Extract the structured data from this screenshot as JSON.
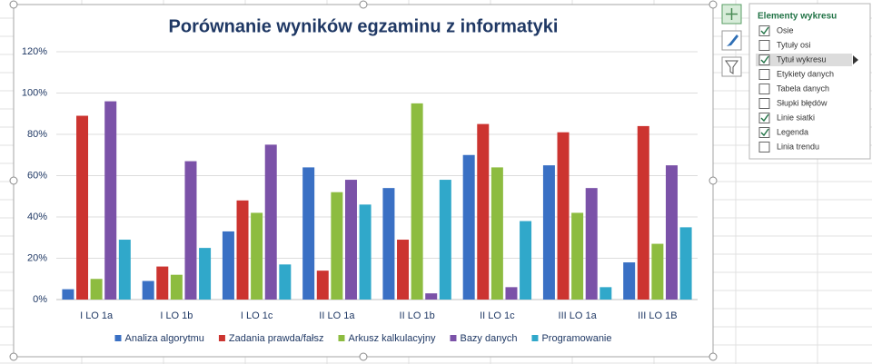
{
  "chart_data": {
    "type": "bar",
    "title": "Porównanie wyników egzaminu z informatyki",
    "categories": [
      "I LO 1a",
      "I LO 1b",
      "I LO 1c",
      "II LO 1a",
      "II LO 1b",
      "II LO 1c",
      "III LO 1a",
      "III LO 1B"
    ],
    "series": [
      {
        "name": "Analiza algorytmu",
        "color": "#3a70c4",
        "values": [
          5,
          9,
          33,
          64,
          54,
          70,
          65,
          18
        ]
      },
      {
        "name": "Zadania prawda/fałsz",
        "color": "#cc3430",
        "values": [
          89,
          16,
          48,
          14,
          29,
          85,
          81,
          84
        ]
      },
      {
        "name": "Arkusz kalkulacyjny",
        "color": "#8dbc40",
        "values": [
          10,
          12,
          42,
          52,
          95,
          64,
          42,
          27
        ]
      },
      {
        "name": "Bazy danych",
        "color": "#7b52a8",
        "values": [
          96,
          67,
          75,
          58,
          3,
          6,
          54,
          65
        ]
      },
      {
        "name": "Programowanie",
        "color": "#30a8ca",
        "values": [
          29,
          25,
          17,
          46,
          58,
          38,
          6,
          35
        ]
      }
    ],
    "ylim": [
      0,
      120
    ],
    "yticks": [
      {
        "value": 0,
        "label": "0%"
      },
      {
        "value": 20,
        "label": "20%"
      },
      {
        "value": 40,
        "label": "40%"
      },
      {
        "value": 60,
        "label": "60%"
      },
      {
        "value": 80,
        "label": "80%"
      },
      {
        "value": 100,
        "label": "100%"
      },
      {
        "value": 120,
        "label": "120%"
      }
    ],
    "grid": true,
    "legend": "bottom"
  },
  "panel": {
    "title": "Elementy wykresu",
    "items": [
      {
        "label": "Osie",
        "checked": true
      },
      {
        "label": "Tytuły osi",
        "checked": false
      },
      {
        "label": "Tytuł wykresu",
        "checked": true,
        "highlighted": true
      },
      {
        "label": "Etykiety danych",
        "checked": false
      },
      {
        "label": "Tabela danych",
        "checked": false
      },
      {
        "label": "Słupki błędów",
        "checked": false
      },
      {
        "label": "Linie siatki",
        "checked": true
      },
      {
        "label": "Legenda",
        "checked": true
      },
      {
        "label": "Linia trendu",
        "checked": false
      }
    ]
  }
}
